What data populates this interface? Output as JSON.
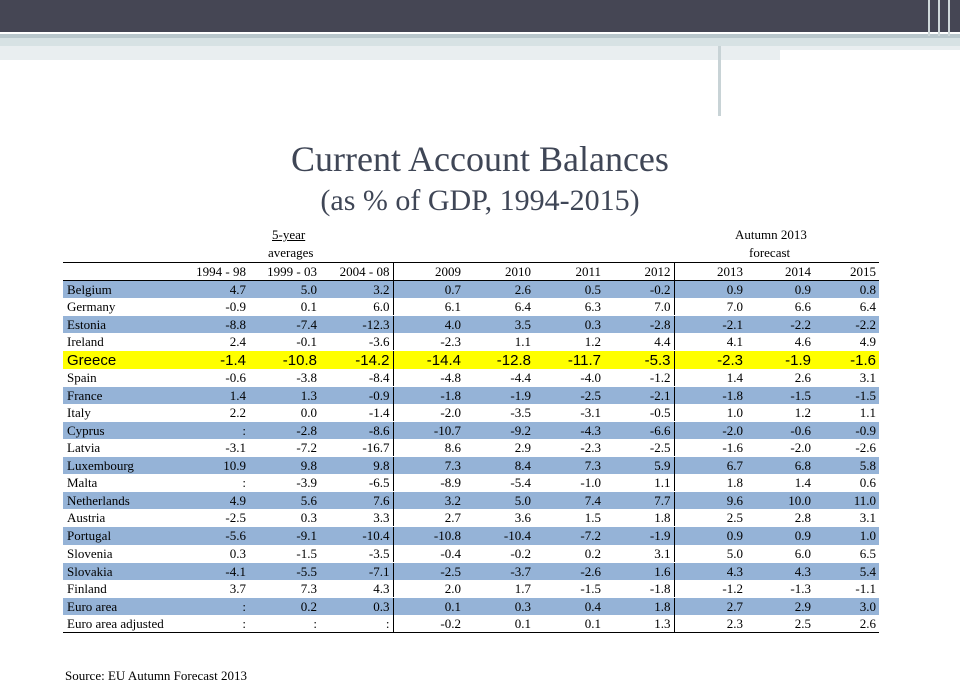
{
  "title": "Current Account Balances",
  "subtitle": "(as % of GDP, 1994-2015)",
  "headers": {
    "averages_top": "5-year",
    "averages_bottom": "averages",
    "forecast_top": "Autumn 2013",
    "forecast_bottom": "forecast",
    "columns": [
      "1994 - 98",
      "1999 - 03",
      "2004 - 08",
      "2009",
      "2010",
      "2011",
      "2012",
      "2013",
      "2014",
      "2015"
    ]
  },
  "rows": [
    {
      "country": "Belgium",
      "values": [
        "4.7",
        "5.0",
        "3.2",
        "0.7",
        "2.6",
        "0.5",
        "-0.2",
        "0.9",
        "0.9",
        "0.8"
      ]
    },
    {
      "country": "Germany",
      "values": [
        "-0.9",
        "0.1",
        "6.0",
        "6.1",
        "6.4",
        "6.3",
        "7.0",
        "7.0",
        "6.6",
        "6.4"
      ]
    },
    {
      "country": "Estonia",
      "values": [
        "-8.8",
        "-7.4",
        "-12.3",
        "4.0",
        "3.5",
        "0.3",
        "-2.8",
        "-2.1",
        "-2.2",
        "-2.2"
      ]
    },
    {
      "country": "Ireland",
      "values": [
        "2.4",
        "-0.1",
        "-3.6",
        "-2.3",
        "1.1",
        "1.2",
        "4.4",
        "4.1",
        "4.6",
        "4.9"
      ]
    },
    {
      "country": "Greece",
      "values": [
        "-1.4",
        "-10.8",
        "-14.2",
        "-14.4",
        "-12.8",
        "-11.7",
        "-5.3",
        "-2.3",
        "-1.9",
        "-1.6"
      ]
    },
    {
      "country": "Spain",
      "values": [
        "-0.6",
        "-3.8",
        "-8.4",
        "-4.8",
        "-4.4",
        "-4.0",
        "-1.2",
        "1.4",
        "2.6",
        "3.1"
      ]
    },
    {
      "country": "France",
      "values": [
        "1.4",
        "1.3",
        "-0.9",
        "-1.8",
        "-1.9",
        "-2.5",
        "-2.1",
        "-1.8",
        "-1.5",
        "-1.5"
      ]
    },
    {
      "country": "Italy",
      "values": [
        "2.2",
        "0.0",
        "-1.4",
        "-2.0",
        "-3.5",
        "-3.1",
        "-0.5",
        "1.0",
        "1.2",
        "1.1"
      ]
    },
    {
      "country": "Cyprus",
      "values": [
        ":",
        "-2.8",
        "-8.6",
        "-10.7",
        "-9.2",
        "-4.3",
        "-6.6",
        "-2.0",
        "-0.6",
        "-0.9"
      ]
    },
    {
      "country": "Latvia",
      "values": [
        "-3.1",
        "-7.2",
        "-16.7",
        "8.6",
        "2.9",
        "-2.3",
        "-2.5",
        "-1.6",
        "-2.0",
        "-2.6"
      ]
    },
    {
      "country": "Luxembourg",
      "values": [
        "10.9",
        "9.8",
        "9.8",
        "7.3",
        "8.4",
        "7.3",
        "5.9",
        "6.7",
        "6.8",
        "5.8"
      ]
    },
    {
      "country": "Malta",
      "values": [
        ":",
        "-3.9",
        "-6.5",
        "-8.9",
        "-5.4",
        "-1.0",
        "1.1",
        "1.8",
        "1.4",
        "0.6"
      ]
    },
    {
      "country": "Netherlands",
      "values": [
        "4.9",
        "5.6",
        "7.6",
        "3.2",
        "5.0",
        "7.4",
        "7.7",
        "9.6",
        "10.0",
        "11.0"
      ]
    },
    {
      "country": "Austria",
      "values": [
        "-2.5",
        "0.3",
        "3.3",
        "2.7",
        "3.6",
        "1.5",
        "1.8",
        "2.5",
        "2.8",
        "3.1"
      ]
    },
    {
      "country": "Portugal",
      "values": [
        "-5.6",
        "-9.1",
        "-10.4",
        "-10.8",
        "-10.4",
        "-7.2",
        "-1.9",
        "0.9",
        "0.9",
        "1.0"
      ]
    },
    {
      "country": "Slovenia",
      "values": [
        "0.3",
        "-1.5",
        "-3.5",
        "-0.4",
        "-0.2",
        "0.2",
        "3.1",
        "5.0",
        "6.0",
        "6.5"
      ]
    },
    {
      "country": "Slovakia",
      "values": [
        "-4.1",
        "-5.5",
        "-7.1",
        "-2.5",
        "-3.7",
        "-2.6",
        "1.6",
        "4.3",
        "4.3",
        "5.4"
      ]
    },
    {
      "country": "Finland",
      "values": [
        "3.7",
        "7.3",
        "4.3",
        "2.0",
        "1.7",
        "-1.5",
        "-1.8",
        "-1.2",
        "-1.3",
        "-1.1"
      ]
    },
    {
      "country": "Euro area",
      "values": [
        ":",
        "0.2",
        "0.3",
        "0.1",
        "0.3",
        "0.4",
        "1.8",
        "2.7",
        "2.9",
        "3.0"
      ]
    },
    {
      "country": "Euro area adjusted",
      "values": [
        ":",
        ":",
        ":",
        "-0.2",
        "0.1",
        "0.1",
        "1.3",
        "2.3",
        "2.5",
        "2.6"
      ]
    }
  ],
  "row_styles": [
    "blue",
    "white",
    "blue",
    "white",
    "yellow",
    "white",
    "blue",
    "white",
    "blue",
    "white",
    "blue",
    "white",
    "blue",
    "white",
    "blue",
    "white",
    "blue",
    "white",
    "blue",
    "white"
  ],
  "colors": {
    "blue_band": "#95b3d7",
    "highlight": "#ffff00",
    "title": "#3f4656",
    "header_bar": "#454654"
  },
  "source": "Source: EU Autumn Forecast 2013"
}
